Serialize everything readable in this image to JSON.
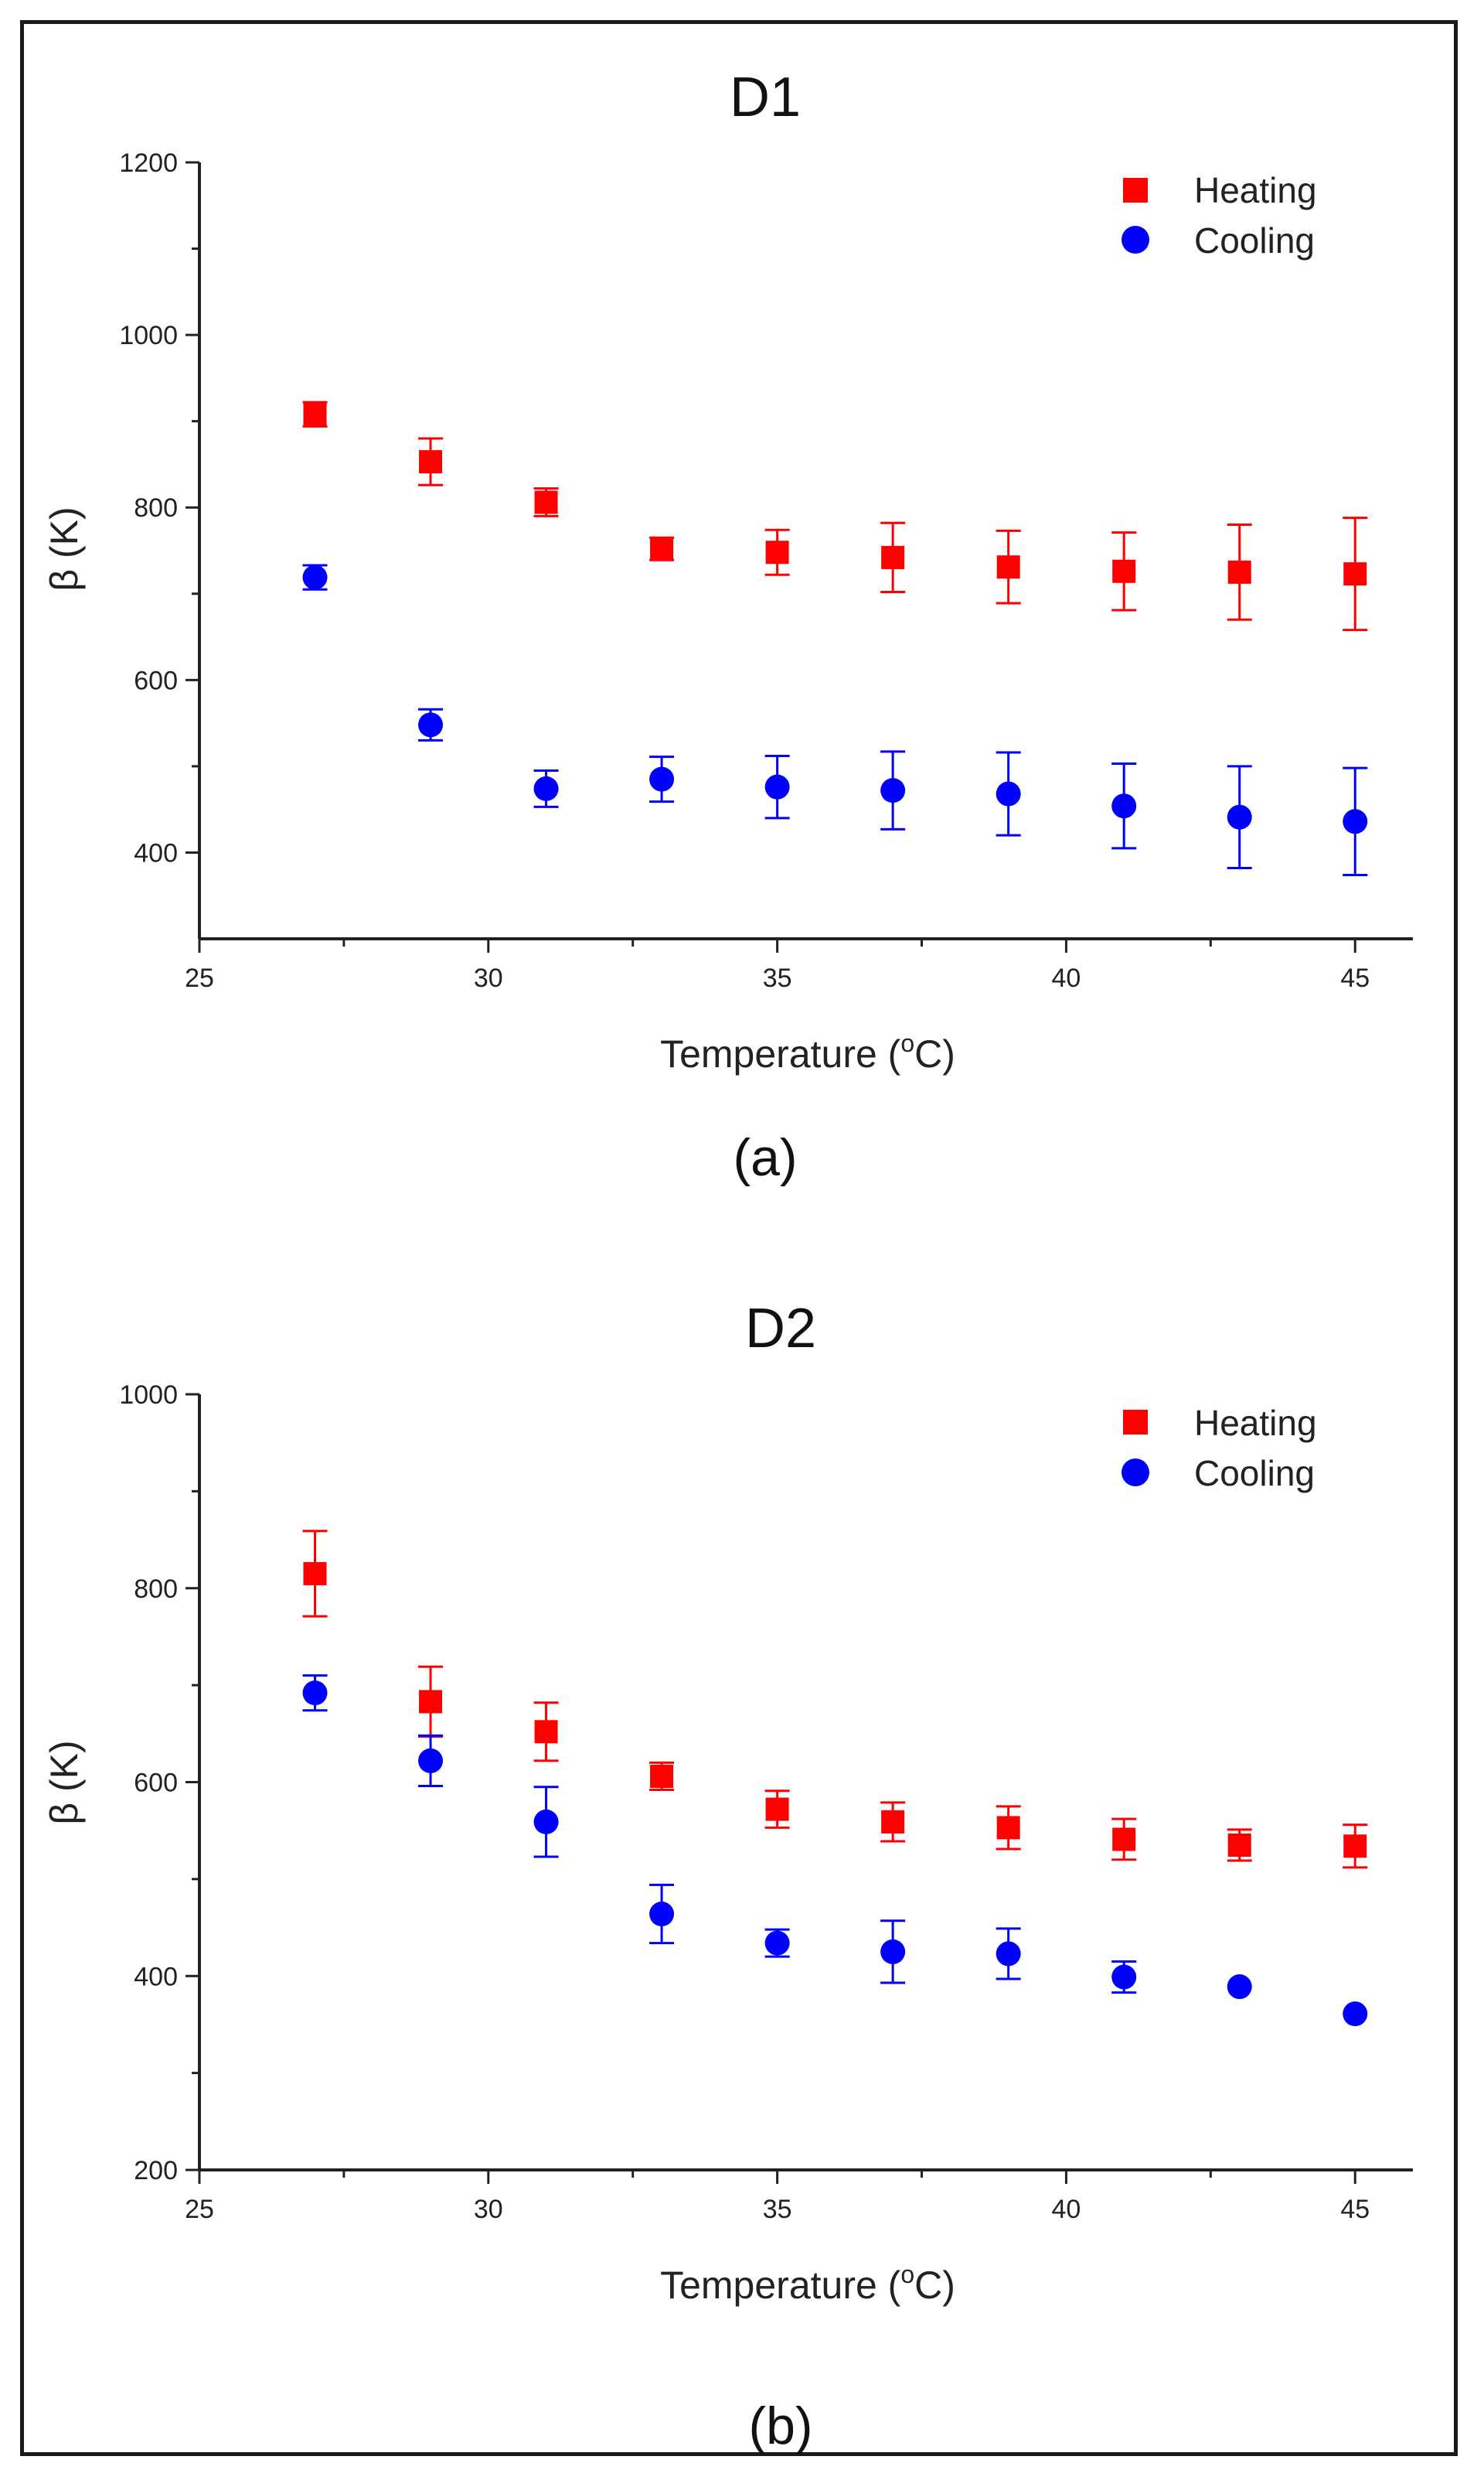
{
  "chart_data": [
    {
      "type": "scatter",
      "title": "D1",
      "panel_label": "(a)",
      "xlabel": "Temperature (",
      "xlabel_sup": "o",
      "xlabel_tail": "C)",
      "ylabel": "β (K)",
      "xlim": [
        25,
        46
      ],
      "ylim": [
        300,
        1200
      ],
      "xticks": [
        25,
        30,
        35,
        40,
        45
      ],
      "yticks": [
        400,
        600,
        800,
        1000,
        1200
      ],
      "x": [
        27,
        29,
        31,
        33,
        35,
        37,
        39,
        41,
        43,
        45
      ],
      "legend_position": "top-right",
      "series": [
        {
          "name": "Heating",
          "marker": "square",
          "color": "#ff0000",
          "values": [
            908,
            853,
            806,
            752,
            748,
            742,
            731,
            726,
            725,
            723
          ],
          "errors": [
            14,
            27,
            16,
            13,
            26,
            40,
            42,
            45,
            55,
            65
          ]
        },
        {
          "name": "Cooling",
          "marker": "circle",
          "color": "#0000ff",
          "values": [
            719,
            548,
            474,
            485,
            476,
            472,
            468,
            454,
            441,
            436
          ],
          "errors": [
            14,
            18,
            21,
            26,
            36,
            45,
            48,
            49,
            59,
            62
          ]
        }
      ]
    },
    {
      "type": "scatter",
      "title": "D2",
      "panel_label": "(b)",
      "xlabel": "Temperature (",
      "xlabel_sup": "o",
      "xlabel_tail": "C)",
      "ylabel": "β (K)",
      "xlim": [
        25,
        46
      ],
      "ylim": [
        200,
        1000
      ],
      "xticks": [
        25,
        30,
        35,
        40,
        45
      ],
      "yticks": [
        200,
        400,
        600,
        800,
        1000
      ],
      "x": [
        27,
        29,
        31,
        33,
        35,
        37,
        39,
        41,
        43,
        45
      ],
      "legend_position": "top-right",
      "series": [
        {
          "name": "Heating",
          "marker": "square",
          "color": "#ff0000",
          "values": [
            815,
            683,
            652,
            606,
            572,
            559,
            553,
            541,
            535,
            534
          ],
          "errors": [
            44,
            36,
            30,
            14,
            19,
            20,
            22,
            21,
            16,
            22
          ]
        },
        {
          "name": "Cooling",
          "marker": "circle",
          "color": "#0000ff",
          "values": [
            692,
            622,
            559,
            464,
            434,
            425,
            423,
            399,
            389,
            361
          ],
          "errors": [
            18,
            26,
            36,
            30,
            14,
            32,
            26,
            16,
            0,
            0
          ]
        }
      ]
    }
  ]
}
